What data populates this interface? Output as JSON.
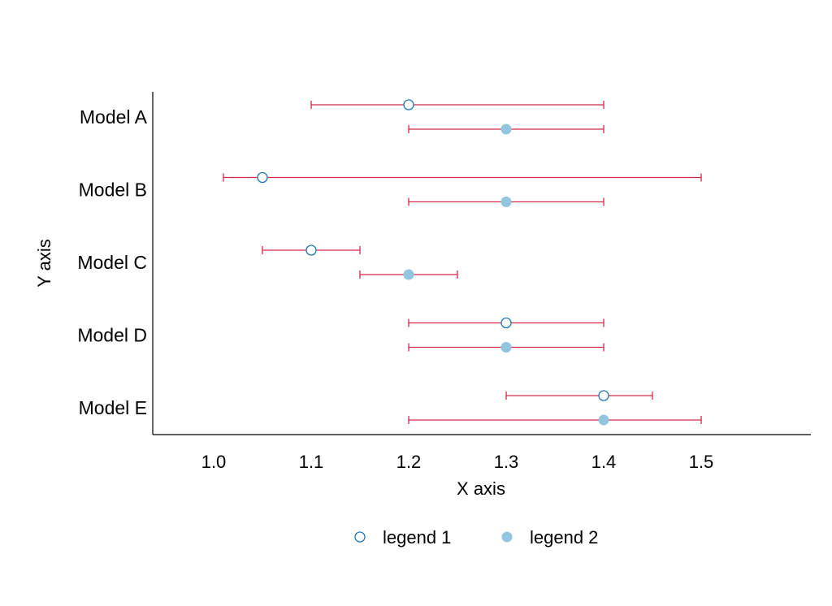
{
  "chart_data": {
    "type": "forest",
    "title": "",
    "xlabel": "X axis",
    "ylabel": "Y axis",
    "xlim": [
      0.94,
      1.61
    ],
    "xticks": [
      1.0,
      1.1,
      1.2,
      1.3,
      1.4,
      1.5
    ],
    "xtick_labels": [
      "1.0",
      "1.1",
      "1.2",
      "1.3",
      "1.4",
      "1.5"
    ],
    "categories": [
      "Model A",
      "Model B",
      "Model C",
      "Model D",
      "Model E"
    ],
    "series": [
      {
        "name": "legend 1",
        "marker": "open-circle",
        "color": "#1f77b4",
        "points": [
          {
            "category": "Model A",
            "value": 1.2,
            "low": 1.1,
            "high": 1.4
          },
          {
            "category": "Model B",
            "value": 1.05,
            "low": 1.01,
            "high": 1.5
          },
          {
            "category": "Model C",
            "value": 1.1,
            "low": 1.05,
            "high": 1.15
          },
          {
            "category": "Model D",
            "value": 1.3,
            "low": 1.2,
            "high": 1.4
          },
          {
            "category": "Model E",
            "value": 1.4,
            "low": 1.3,
            "high": 1.45
          }
        ]
      },
      {
        "name": "legend 2",
        "marker": "filled-circle",
        "color": "#92c5de",
        "points": [
          {
            "category": "Model A",
            "value": 1.3,
            "low": 1.2,
            "high": 1.4
          },
          {
            "category": "Model B",
            "value": 1.3,
            "low": 1.2,
            "high": 1.4
          },
          {
            "category": "Model C",
            "value": 1.2,
            "low": 1.15,
            "high": 1.25
          },
          {
            "category": "Model D",
            "value": 1.3,
            "low": 1.2,
            "high": 1.4
          },
          {
            "category": "Model E",
            "value": 1.4,
            "low": 1.2,
            "high": 1.5
          }
        ]
      }
    ],
    "error_bar_color": "#d6274a",
    "grid": false,
    "legend_position": "bottom"
  }
}
